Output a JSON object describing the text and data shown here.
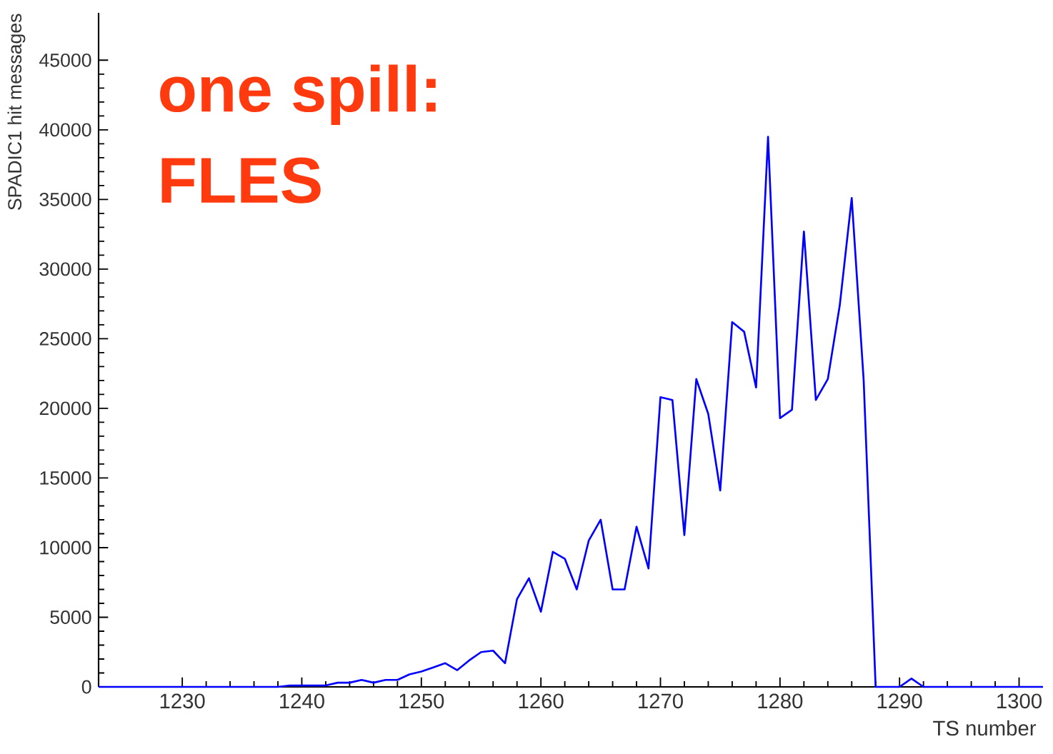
{
  "chart_data": {
    "type": "line",
    "xlabel": "TS number",
    "ylabel": "SPADIC1 hit messages",
    "annotations": [
      "one spill:",
      "FLES"
    ],
    "x": [
      1223,
      1224,
      1225,
      1226,
      1227,
      1228,
      1229,
      1230,
      1231,
      1232,
      1233,
      1234,
      1235,
      1236,
      1237,
      1238,
      1239,
      1240,
      1241,
      1242,
      1243,
      1244,
      1245,
      1246,
      1247,
      1248,
      1249,
      1250,
      1251,
      1252,
      1253,
      1254,
      1255,
      1256,
      1257,
      1258,
      1259,
      1260,
      1261,
      1262,
      1263,
      1264,
      1265,
      1266,
      1267,
      1268,
      1269,
      1270,
      1271,
      1272,
      1273,
      1274,
      1275,
      1276,
      1277,
      1278,
      1279,
      1280,
      1281,
      1282,
      1283,
      1284,
      1285,
      1286,
      1287,
      1288,
      1289,
      1290,
      1291,
      1292,
      1293,
      1294,
      1295,
      1296,
      1297,
      1298,
      1299,
      1300,
      1301,
      1302
    ],
    "values": [
      0,
      0,
      0,
      0,
      0,
      0,
      0,
      0,
      0,
      0,
      0,
      0,
      0,
      0,
      0,
      0,
      100,
      100,
      100,
      100,
      300,
      300,
      500,
      300,
      500,
      500,
      900,
      1100,
      1400,
      1700,
      1200,
      1900,
      2500,
      2600,
      1700,
      6300,
      7800,
      5400,
      9700,
      9200,
      7000,
      10500,
      12000,
      7000,
      7000,
      11500,
      8500,
      20800,
      20600,
      10900,
      22100,
      19600,
      14100,
      26200,
      25500,
      21500,
      39500,
      19300,
      19900,
      32700,
      20600,
      22100,
      27400,
      35100,
      22000,
      0,
      0,
      0,
      600,
      0,
      0,
      0,
      0,
      0,
      0,
      0,
      0,
      0,
      0,
      0
    ],
    "color": "#0000ff",
    "line_style": "solid",
    "marker": "none",
    "xlim": [
      1223,
      1302
    ],
    "ylim": [
      0,
      48400
    ],
    "xticks": [
      1230,
      1240,
      1250,
      1260,
      1270,
      1280,
      1290,
      1300
    ],
    "yticks": [
      0,
      5000,
      10000,
      15000,
      20000,
      25000,
      30000,
      35000,
      40000,
      45000
    ]
  }
}
